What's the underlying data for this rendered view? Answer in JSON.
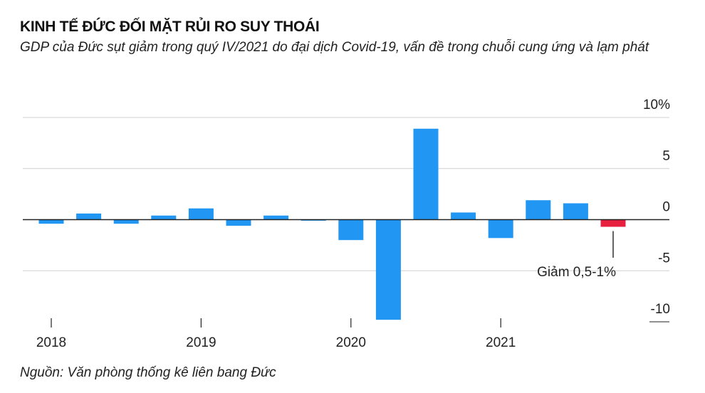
{
  "header": {
    "title": "KINH TẾ ĐỨC ĐỐI MẶT RỦI RO SUY THOÁI",
    "subtitle": "GDP của Đức sụt giảm trong quý IV/2021 do đại dịch Covid-19, vấn đề trong chuỗi cung ứng và lạm phát"
  },
  "footer": {
    "source": "Nguồn: Văn phòng thống kê liên bang Đức"
  },
  "colors": {
    "bar": "#2196f3",
    "highlight": "#e8203f",
    "grid": "#d0d0d0",
    "axis": "#222222"
  },
  "chart_data": {
    "type": "bar",
    "categories": [
      "Q1 2018",
      "Q2 2018",
      "Q3 2018",
      "Q4 2018",
      "Q1 2019",
      "Q2 2019",
      "Q3 2019",
      "Q4 2019",
      "Q1 2020",
      "Q2 2020",
      "Q3 2020",
      "Q4 2020",
      "Q1 2021",
      "Q2 2021",
      "Q3 2021",
      "Q4 2021"
    ],
    "values": [
      -0.4,
      0.6,
      -0.4,
      0.4,
      1.1,
      -0.6,
      0.4,
      -0.1,
      -2.0,
      -9.8,
      8.9,
      0.7,
      -1.8,
      1.9,
      1.6,
      -0.7
    ],
    "highlight_index": 15,
    "ylim": [
      -10,
      10
    ],
    "yticks": [
      {
        "value": 10,
        "label": "10%"
      },
      {
        "value": 5,
        "label": "5"
      },
      {
        "value": 0,
        "label": "0"
      },
      {
        "value": -5,
        "label": "-5"
      },
      {
        "value": -10,
        "label": "-10"
      }
    ],
    "xticks": [
      {
        "index": 0,
        "label": "2018"
      },
      {
        "index": 4,
        "label": "2019"
      },
      {
        "index": 8,
        "label": "2020"
      },
      {
        "index": 12,
        "label": "2021"
      }
    ],
    "annotation": {
      "index": 15,
      "text": "Giảm 0,5-1%"
    },
    "grid": true
  }
}
